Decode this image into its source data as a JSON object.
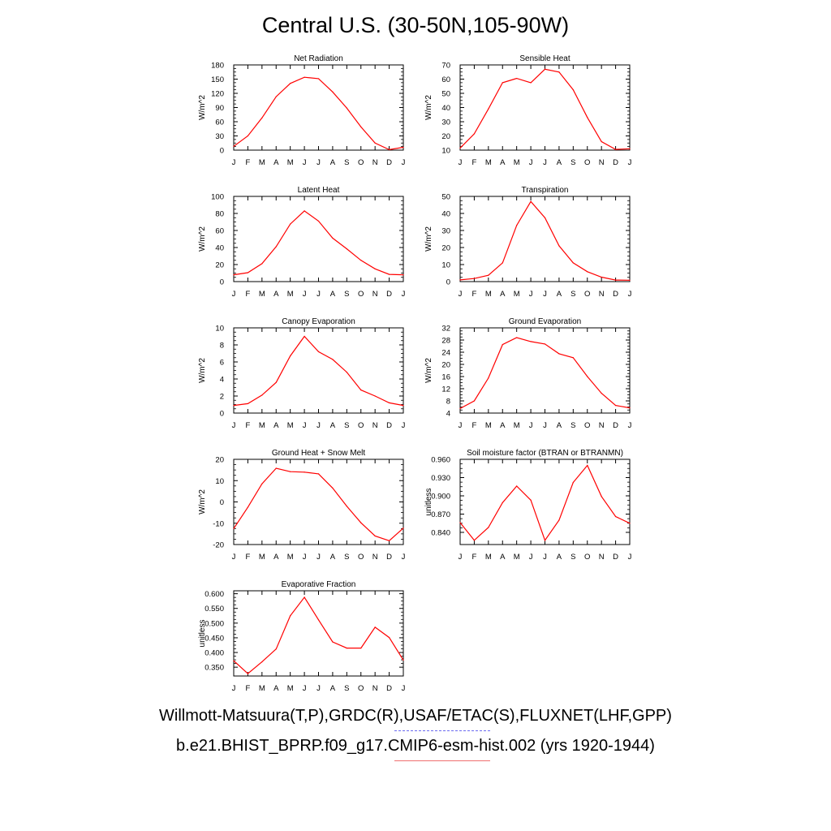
{
  "title": "Central U.S. (30-50N,105-90W)",
  "legend": {
    "observed_label": "Willmott-Matsuura(T,P),GRDC(R),USAF/ETAC(S),FLUXNET(LHF,GPP)",
    "observed_color": "#6a6af0",
    "observed_style": "dashed",
    "model_label": "b.e21.BHIST_BPRP.f09_g17.CMIP6-esm-hist.002 (yrs 1920-1944)",
    "model_color": "#f07070",
    "model_style": "solid"
  },
  "series_color": "#ff0000",
  "chart_data": [
    {
      "type": "line",
      "title": "Net Radiation",
      "ylabel": "W/m^2",
      "categories": [
        "J",
        "F",
        "M",
        "A",
        "M",
        "J",
        "J",
        "A",
        "S",
        "O",
        "N",
        "D",
        "J"
      ],
      "ylim": [
        0,
        180
      ],
      "yticks": [
        "0",
        "30",
        "60",
        "90",
        "120",
        "150",
        "180"
      ],
      "yticks_values": [
        0,
        30,
        60,
        90,
        120,
        150,
        180
      ],
      "series": [
        {
          "values": [
            8,
            30,
            68,
            113,
            141,
            154,
            151,
            123,
            89,
            49,
            15,
            1,
            6
          ]
        }
      ]
    },
    {
      "type": "line",
      "title": "Sensible Heat",
      "ylabel": "W/m^2",
      "categories": [
        "J",
        "F",
        "M",
        "A",
        "M",
        "J",
        "J",
        "A",
        "S",
        "O",
        "N",
        "D",
        "J"
      ],
      "ylim": [
        10,
        70
      ],
      "yticks": [
        "10",
        "20",
        "30",
        "40",
        "50",
        "60",
        "70"
      ],
      "yticks_values": [
        10,
        20,
        30,
        40,
        50,
        60,
        70
      ],
      "series": [
        {
          "values": [
            11.5,
            21.5,
            39,
            57.5,
            60.5,
            57.5,
            67,
            65,
            52.5,
            33,
            16,
            10.5,
            11
          ]
        }
      ]
    },
    {
      "type": "line",
      "title": "Latent Heat",
      "ylabel": "W/m^2",
      "categories": [
        "J",
        "F",
        "M",
        "A",
        "M",
        "J",
        "J",
        "A",
        "S",
        "O",
        "N",
        "D",
        "J"
      ],
      "ylim": [
        0,
        100
      ],
      "yticks": [
        "0",
        "20",
        "40",
        "60",
        "80",
        "100"
      ],
      "yticks_values": [
        0,
        20,
        40,
        60,
        80,
        100
      ],
      "series": [
        {
          "values": [
            8,
            10.5,
            21,
            41,
            67.5,
            83,
            71,
            51,
            38.5,
            25,
            15,
            8.5,
            8
          ]
        }
      ]
    },
    {
      "type": "line",
      "title": "Transpiration",
      "ylabel": "W/m^2",
      "categories": [
        "J",
        "F",
        "M",
        "A",
        "M",
        "J",
        "J",
        "A",
        "S",
        "O",
        "N",
        "D",
        "J"
      ],
      "ylim": [
        0,
        50
      ],
      "yticks": [
        "0",
        "10",
        "20",
        "30",
        "40",
        "50"
      ],
      "yticks_values": [
        0,
        10,
        20,
        30,
        40,
        50
      ],
      "series": [
        {
          "values": [
            1,
            1.8,
            3.7,
            11,
            33,
            47,
            37.5,
            21,
            11,
            5.8,
            2.6,
            0.9,
            0.8
          ]
        }
      ]
    },
    {
      "type": "line",
      "title": "Canopy Evaporation",
      "ylabel": "W/m^2",
      "categories": [
        "J",
        "F",
        "M",
        "A",
        "M",
        "J",
        "J",
        "A",
        "S",
        "O",
        "N",
        "D",
        "J"
      ],
      "ylim": [
        0,
        10
      ],
      "yticks": [
        "0",
        "2",
        "4",
        "6",
        "8",
        "10"
      ],
      "yticks_values": [
        0,
        2,
        4,
        6,
        8,
        10
      ],
      "series": [
        {
          "values": [
            0.9,
            1.1,
            2.1,
            3.6,
            6.7,
            9.0,
            7.2,
            6.3,
            4.8,
            2.7,
            2.0,
            1.2,
            0.9
          ]
        }
      ]
    },
    {
      "type": "line",
      "title": "Ground Evaporation",
      "ylabel": "W/m^2",
      "categories": [
        "J",
        "F",
        "M",
        "A",
        "M",
        "J",
        "J",
        "A",
        "S",
        "O",
        "N",
        "D",
        "J"
      ],
      "ylim": [
        4,
        32
      ],
      "yticks": [
        "4",
        "8",
        "12",
        "16",
        "20",
        "24",
        "28",
        "32"
      ],
      "yticks_values": [
        4,
        8,
        12,
        16,
        20,
        24,
        28,
        32
      ],
      "series": [
        {
          "values": [
            5.5,
            8,
            15.5,
            26.5,
            28.8,
            27.5,
            26.7,
            23.5,
            22.2,
            16,
            10.5,
            6.5,
            5.7
          ]
        }
      ]
    },
    {
      "type": "line",
      "title": "Ground Heat + Snow Melt",
      "ylabel": "W/m^2",
      "categories": [
        "J",
        "F",
        "M",
        "A",
        "M",
        "J",
        "J",
        "A",
        "S",
        "O",
        "N",
        "D",
        "J"
      ],
      "ylim": [
        -20,
        20
      ],
      "yticks": [
        "-20",
        "-10",
        "0",
        "10",
        "20"
      ],
      "yticks_values": [
        -20,
        -10,
        0,
        10,
        20
      ],
      "series": [
        {
          "values": [
            -12.5,
            -2.5,
            8.5,
            15.8,
            14.2,
            14.0,
            13.2,
            6.5,
            -2.0,
            -9.8,
            -16.0,
            -18.2,
            -12.3
          ]
        }
      ]
    },
    {
      "type": "line",
      "title": "Soil moisture factor (BTRAN or BTRANMN)",
      "ylabel": "unitless",
      "categories": [
        "J",
        "F",
        "M",
        "A",
        "M",
        "J",
        "J",
        "A",
        "S",
        "O",
        "N",
        "D",
        "J"
      ],
      "ylim": [
        0.82,
        0.96
      ],
      "yticks": [
        "0.840",
        "0.870",
        "0.900",
        "0.930",
        "0.960"
      ],
      "yticks_values": [
        0.84,
        0.87,
        0.9,
        0.93,
        0.96
      ],
      "series": [
        {
          "values": [
            0.856,
            0.827,
            0.848,
            0.889,
            0.916,
            0.893,
            0.827,
            0.86,
            0.922,
            0.95,
            0.899,
            0.866,
            0.855
          ]
        }
      ]
    },
    {
      "type": "line",
      "title": "Evaporative Fraction",
      "ylabel": "unitless",
      "categories": [
        "J",
        "F",
        "M",
        "A",
        "M",
        "J",
        "J",
        "A",
        "S",
        "O",
        "N",
        "D",
        "J"
      ],
      "ylim": [
        0.32,
        0.61
      ],
      "yticks": [
        "0.350",
        "0.400",
        "0.450",
        "0.500",
        "0.550",
        "0.600"
      ],
      "yticks_values": [
        0.35,
        0.4,
        0.45,
        0.5,
        0.55,
        0.6
      ],
      "series": [
        {
          "values": [
            0.372,
            0.328,
            0.368,
            0.412,
            0.525,
            0.588,
            0.511,
            0.436,
            0.415,
            0.415,
            0.486,
            0.451,
            0.374
          ]
        }
      ]
    }
  ]
}
